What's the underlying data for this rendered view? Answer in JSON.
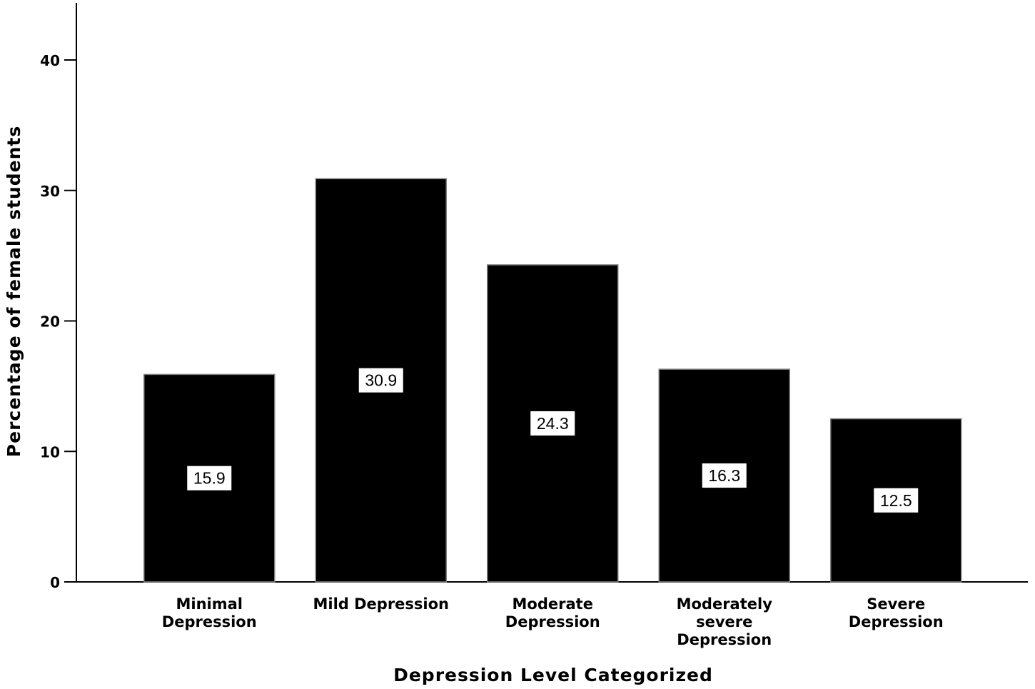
{
  "chart_data": {
    "type": "bar",
    "title": "",
    "xlabel": "Depression Level Categorized",
    "ylabel": "Percentage of female students",
    "ylim": [
      0,
      44
    ],
    "yticks": [
      0,
      10,
      20,
      30,
      40
    ],
    "grid": false,
    "categories": [
      [
        "Minimal",
        "Depression"
      ],
      [
        "Mild Depression"
      ],
      [
        "Moderate",
        "Depression"
      ],
      [
        "Moderately",
        "severe",
        "Depression"
      ],
      [
        "Severe",
        "Depression"
      ]
    ],
    "values": [
      15.9,
      30.9,
      24.3,
      16.3,
      12.5
    ],
    "value_labels": [
      "15.9",
      "30.9",
      "24.3",
      "16.3",
      "12.5"
    ],
    "bar_color": "#000000",
    "label_box_color": "#ffffff"
  }
}
